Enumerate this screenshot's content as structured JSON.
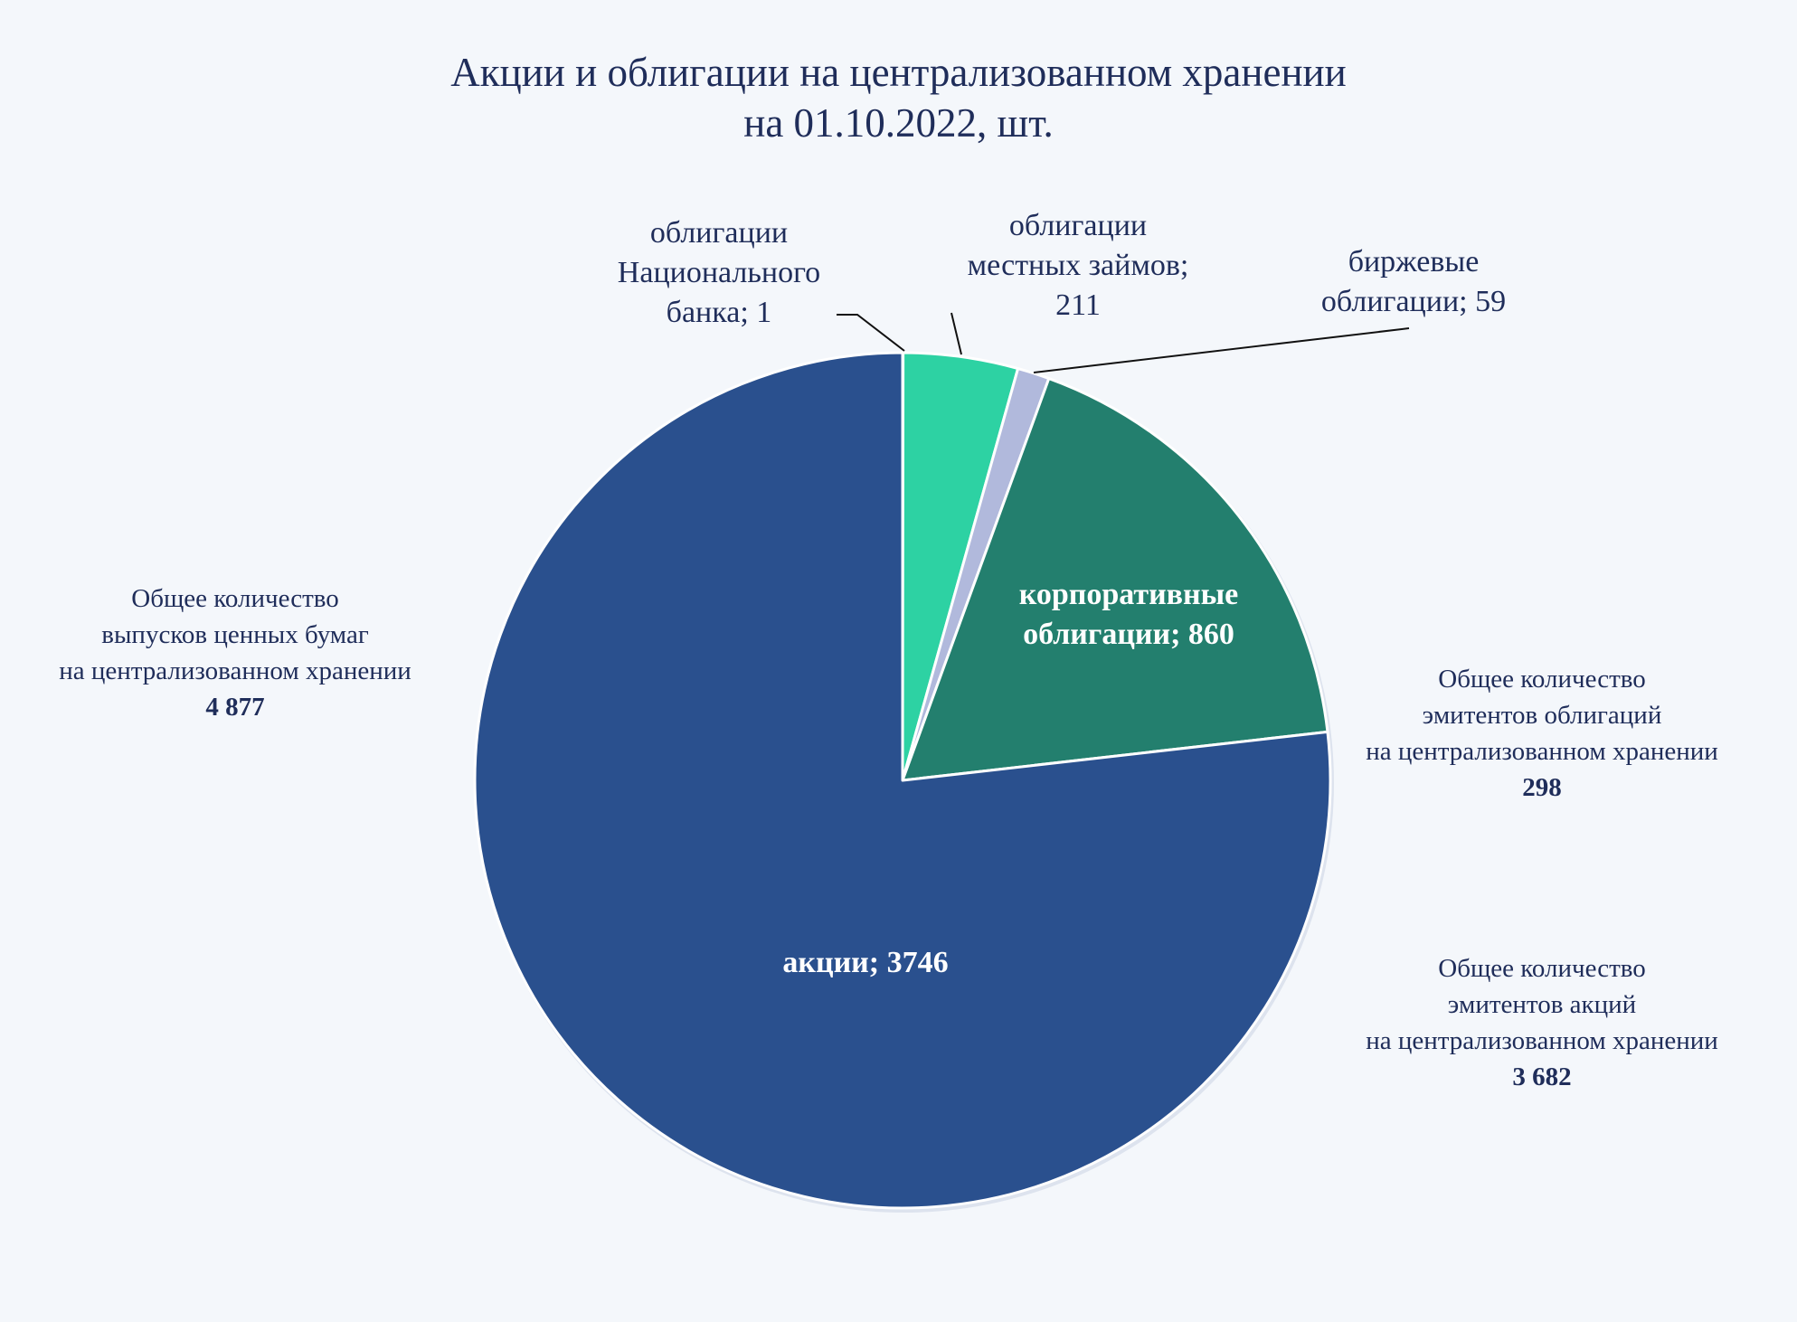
{
  "chart_data": {
    "type": "pie",
    "title": "Акции и облигации на централизованном хранении",
    "subtitle": "на 01.10.2022, шт.",
    "start_angle_deg": 0,
    "direction": "clockwise",
    "slices": [
      {
        "name": "облигации Национального банка",
        "value": 1,
        "color": "#8fa0d4",
        "label_lines": [
          "облигации",
          "Национального",
          "банка; 1"
        ],
        "label_style": "outside",
        "label_anchor": "end"
      },
      {
        "name": "облигации местных займов",
        "value": 211,
        "color": "#2dd2a3",
        "label_lines": [
          "облигации",
          "местных займов;",
          "211"
        ],
        "label_style": "outside",
        "label_anchor": "middle"
      },
      {
        "name": "биржевые облигации",
        "value": 59,
        "color": "#b1b9dc",
        "label_lines": [
          "биржевые",
          "облигации; 59"
        ],
        "label_style": "outside",
        "label_anchor": "start"
      },
      {
        "name": "корпоративные облигации",
        "value": 860,
        "color": "#237f6e",
        "label_lines": [
          "корпоративные",
          "облигации; 860"
        ],
        "label_style": "inside"
      },
      {
        "name": "акции",
        "value": 3746,
        "color": "#2a508e",
        "label_lines": [
          "акции; 3746"
        ],
        "label_style": "inside"
      }
    ]
  },
  "notes": [
    {
      "lines": [
        "Общее количество",
        "выпусков ценных бумаг",
        "на централизованном хранении"
      ],
      "value": "4 877"
    },
    {
      "lines": [
        "Общее количество",
        "эмитентов облигаций",
        "на централизованном хранении"
      ],
      "value": "298"
    },
    {
      "lines": [
        "Общее количество",
        "эмитентов акций",
        "на централизованном хранении"
      ],
      "value": "3 682"
    }
  ]
}
